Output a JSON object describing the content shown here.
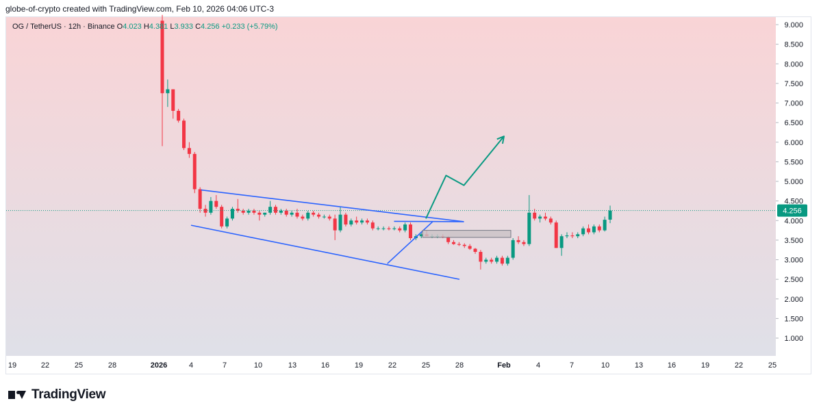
{
  "byline": "globe-of-crypto created with TradingView.com, Feb 10, 2026 04:06 UTC-3",
  "legend": {
    "symbol": "OG / TetherUS · 12h · Binance",
    "open_label": "O",
    "open": "4.023",
    "high_label": "H",
    "high": "4.381",
    "low_label": "L",
    "low": "3.933",
    "close_label": "C",
    "close": "4.256",
    "change": "+0.233 (+5.79%)"
  },
  "brand": "TradingView",
  "colors": {
    "up": "#089981",
    "down": "#f23645",
    "pattern_line": "#2962ff",
    "arrow": "#089981",
    "price_badge": "#089981",
    "bg_top": "#f9d4d6",
    "bg_bottom": "#dfe0e8"
  },
  "chart_data": {
    "type": "candlestick",
    "title": "",
    "ylim": [
      0.5,
      9.25
    ],
    "y_ticks": [
      "9.000",
      "8.500",
      "8.000",
      "7.500",
      "7.000",
      "6.500",
      "6.000",
      "5.500",
      "5.000",
      "4.500",
      "4.000",
      "3.500",
      "3.000",
      "2.500",
      "2.000",
      "1.500",
      "1.000"
    ],
    "x_labels": [
      "19",
      "22",
      "25",
      "28",
      "2026",
      "4",
      "7",
      "10",
      "13",
      "16",
      "19",
      "22",
      "25",
      "28",
      "Feb",
      "4",
      "7",
      "10",
      "13",
      "16",
      "19",
      "22",
      "25"
    ],
    "current_price": "4.256",
    "candles": [
      {
        "o": 9.1,
        "h": 9.25,
        "l": 5.9,
        "c": 7.25
      },
      {
        "o": 7.25,
        "h": 7.6,
        "l": 6.9,
        "c": 7.35
      },
      {
        "o": 7.35,
        "h": 7.35,
        "l": 6.6,
        "c": 6.8
      },
      {
        "o": 6.8,
        "h": 6.85,
        "l": 6.5,
        "c": 6.55
      },
      {
        "o": 6.55,
        "h": 6.6,
        "l": 5.8,
        "c": 5.85
      },
      {
        "o": 5.85,
        "h": 6.0,
        "l": 5.6,
        "c": 5.7
      },
      {
        "o": 5.7,
        "h": 5.75,
        "l": 4.7,
        "c": 4.8
      },
      {
        "o": 4.8,
        "h": 4.85,
        "l": 4.2,
        "c": 4.3
      },
      {
        "o": 4.3,
        "h": 4.4,
        "l": 4.1,
        "c": 4.2
      },
      {
        "o": 4.2,
        "h": 4.6,
        "l": 4.15,
        "c": 4.5
      },
      {
        "o": 4.5,
        "h": 4.65,
        "l": 4.3,
        "c": 4.35
      },
      {
        "o": 4.35,
        "h": 4.4,
        "l": 3.8,
        "c": 3.85
      },
      {
        "o": 3.85,
        "h": 4.1,
        "l": 3.8,
        "c": 4.05
      },
      {
        "o": 4.05,
        "h": 4.35,
        "l": 4.0,
        "c": 4.3
      },
      {
        "o": 4.3,
        "h": 4.55,
        "l": 4.2,
        "c": 4.25
      },
      {
        "o": 4.25,
        "h": 4.3,
        "l": 4.15,
        "c": 4.2
      },
      {
        "o": 4.2,
        "h": 4.3,
        "l": 4.15,
        "c": 4.25
      },
      {
        "o": 4.25,
        "h": 4.3,
        "l": 4.15,
        "c": 4.2
      },
      {
        "o": 4.2,
        "h": 4.25,
        "l": 4.0,
        "c": 4.15
      },
      {
        "o": 4.15,
        "h": 4.2,
        "l": 4.1,
        "c": 4.2
      },
      {
        "o": 4.2,
        "h": 4.5,
        "l": 4.15,
        "c": 4.35
      },
      {
        "o": 4.35,
        "h": 4.4,
        "l": 4.15,
        "c": 4.2
      },
      {
        "o": 4.2,
        "h": 4.3,
        "l": 4.15,
        "c": 4.25
      },
      {
        "o": 4.25,
        "h": 4.3,
        "l": 4.1,
        "c": 4.15
      },
      {
        "o": 4.15,
        "h": 4.25,
        "l": 4.1,
        "c": 4.2
      },
      {
        "o": 4.2,
        "h": 4.3,
        "l": 4.05,
        "c": 4.1
      },
      {
        "o": 4.1,
        "h": 4.15,
        "l": 4.0,
        "c": 4.05
      },
      {
        "o": 4.05,
        "h": 4.25,
        "l": 4.0,
        "c": 4.2
      },
      {
        "o": 4.2,
        "h": 4.25,
        "l": 4.1,
        "c": 4.15
      },
      {
        "o": 4.15,
        "h": 4.2,
        "l": 4.05,
        "c": 4.1
      },
      {
        "o": 4.1,
        "h": 4.15,
        "l": 4.05,
        "c": 4.1
      },
      {
        "o": 4.1,
        "h": 4.15,
        "l": 4.0,
        "c": 4.05
      },
      {
        "o": 4.05,
        "h": 4.15,
        "l": 3.5,
        "c": 3.75
      },
      {
        "o": 3.75,
        "h": 4.35,
        "l": 3.7,
        "c": 4.15
      },
      {
        "o": 4.15,
        "h": 4.2,
        "l": 3.85,
        "c": 3.9
      },
      {
        "o": 3.9,
        "h": 4.05,
        "l": 3.85,
        "c": 4.0
      },
      {
        "o": 4.0,
        "h": 4.1,
        "l": 3.9,
        "c": 3.95
      },
      {
        "o": 3.95,
        "h": 4.05,
        "l": 3.9,
        "c": 4.0
      },
      {
        "o": 4.0,
        "h": 4.05,
        "l": 3.9,
        "c": 3.95
      },
      {
        "o": 3.95,
        "h": 4.0,
        "l": 3.75,
        "c": 3.8
      },
      {
        "o": 3.8,
        "h": 3.85,
        "l": 3.75,
        "c": 3.8
      },
      {
        "o": 3.8,
        "h": 3.85,
        "l": 3.75,
        "c": 3.8
      },
      {
        "o": 3.8,
        "h": 3.85,
        "l": 3.75,
        "c": 3.78
      },
      {
        "o": 3.78,
        "h": 3.85,
        "l": 3.75,
        "c": 3.8
      },
      {
        "o": 3.8,
        "h": 3.85,
        "l": 3.7,
        "c": 3.75
      },
      {
        "o": 3.75,
        "h": 3.95,
        "l": 3.7,
        "c": 3.9
      },
      {
        "o": 3.9,
        "h": 3.95,
        "l": 3.5,
        "c": 3.55
      },
      {
        "o": 3.55,
        "h": 3.65,
        "l": 3.5,
        "c": 3.6
      },
      {
        "o": 3.6,
        "h": 3.7,
        "l": 3.55,
        "c": 3.65
      },
      {
        "o": 3.65,
        "h": 3.75,
        "l": 3.6,
        "c": 3.6
      },
      {
        "o": 3.6,
        "h": 3.65,
        "l": 3.55,
        "c": 3.6
      },
      {
        "o": 3.6,
        "h": 3.65,
        "l": 3.55,
        "c": 3.6
      },
      {
        "o": 3.6,
        "h": 3.65,
        "l": 3.55,
        "c": 3.58
      },
      {
        "o": 3.58,
        "h": 3.6,
        "l": 3.4,
        "c": 3.45
      },
      {
        "o": 3.45,
        "h": 3.5,
        "l": 3.38,
        "c": 3.4
      },
      {
        "o": 3.4,
        "h": 3.45,
        "l": 3.35,
        "c": 3.38
      },
      {
        "o": 3.38,
        "h": 3.42,
        "l": 3.3,
        "c": 3.35
      },
      {
        "o": 3.35,
        "h": 3.4,
        "l": 3.25,
        "c": 3.28
      },
      {
        "o": 3.28,
        "h": 3.3,
        "l": 3.15,
        "c": 3.2
      },
      {
        "o": 3.2,
        "h": 3.25,
        "l": 2.75,
        "c": 2.95
      },
      {
        "o": 2.95,
        "h": 3.05,
        "l": 2.9,
        "c": 3.0
      },
      {
        "o": 3.0,
        "h": 3.05,
        "l": 2.9,
        "c": 2.95
      },
      {
        "o": 2.95,
        "h": 3.1,
        "l": 2.9,
        "c": 3.05
      },
      {
        "o": 3.05,
        "h": 3.1,
        "l": 2.85,
        "c": 2.9
      },
      {
        "o": 2.9,
        "h": 3.1,
        "l": 2.85,
        "c": 3.05
      },
      {
        "o": 3.05,
        "h": 3.55,
        "l": 3.0,
        "c": 3.5
      },
      {
        "o": 3.5,
        "h": 3.6,
        "l": 3.4,
        "c": 3.45
      },
      {
        "o": 3.45,
        "h": 3.5,
        "l": 3.35,
        "c": 3.4
      },
      {
        "o": 3.4,
        "h": 4.65,
        "l": 3.35,
        "c": 4.2
      },
      {
        "o": 4.2,
        "h": 4.3,
        "l": 4.0,
        "c": 4.05
      },
      {
        "o": 4.05,
        "h": 4.15,
        "l": 3.95,
        "c": 4.1
      },
      {
        "o": 4.1,
        "h": 4.2,
        "l": 4.0,
        "c": 4.05
      },
      {
        "o": 4.05,
        "h": 4.1,
        "l": 3.9,
        "c": 3.95
      },
      {
        "o": 3.95,
        "h": 4.0,
        "l": 3.3,
        "c": 3.3
      },
      {
        "o": 3.3,
        "h": 3.65,
        "l": 3.1,
        "c": 3.6
      },
      {
        "o": 3.6,
        "h": 3.7,
        "l": 3.55,
        "c": 3.62
      },
      {
        "o": 3.62,
        "h": 3.7,
        "l": 3.55,
        "c": 3.6
      },
      {
        "o": 3.6,
        "h": 3.7,
        "l": 3.55,
        "c": 3.65
      },
      {
        "o": 3.65,
        "h": 3.85,
        "l": 3.6,
        "c": 3.8
      },
      {
        "o": 3.8,
        "h": 3.9,
        "l": 3.65,
        "c": 3.7
      },
      {
        "o": 3.7,
        "h": 3.9,
        "l": 3.65,
        "c": 3.85
      },
      {
        "o": 3.85,
        "h": 3.9,
        "l": 3.7,
        "c": 3.75
      },
      {
        "o": 3.75,
        "h": 4.1,
        "l": 3.72,
        "c": 4.02
      },
      {
        "o": 4.023,
        "h": 4.381,
        "l": 3.933,
        "c": 4.256
      }
    ],
    "annotations": {
      "channel_upper": [
        [
          5.3,
          4.78
        ],
        [
          13.1,
          3.97
        ]
      ],
      "channel_lower": [
        [
          5.0,
          3.88
        ],
        [
          13.0,
          2.5
        ]
      ],
      "wedge_upper": [
        [
          11.05,
          3.98
        ],
        [
          13.1,
          3.97
        ]
      ],
      "wedge_lower": [
        [
          10.85,
          2.9
        ],
        [
          12.2,
          3.97
        ]
      ],
      "box": [
        [
          11.9,
          3.75
        ],
        [
          14.2,
          3.57
        ]
      ],
      "projection_arrow": [
        [
          12.0,
          4.05
        ],
        [
          12.6,
          5.15
        ],
        [
          13.1,
          4.9
        ],
        [
          14.0,
          6.15
        ]
      ]
    }
  }
}
